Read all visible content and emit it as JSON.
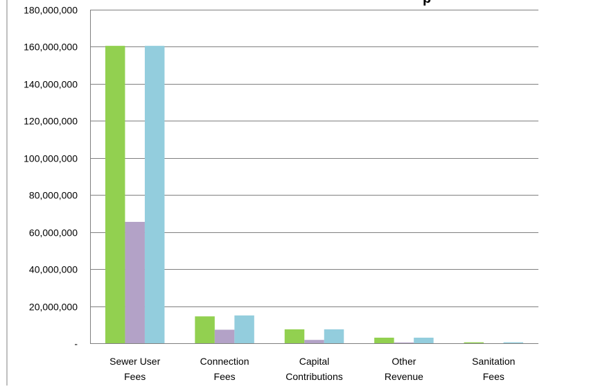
{
  "chart_data": {
    "type": "bar",
    "title_fragment": "p",
    "categories": [
      [
        "Sewer User",
        "Fees"
      ],
      [
        "Connection",
        "Fees"
      ],
      [
        "Capital",
        "Contributions"
      ],
      [
        "Other",
        "Revenue"
      ],
      [
        "Sanitation",
        "Fees"
      ]
    ],
    "series": [
      {
        "values": [
          160500000,
          14500000,
          7500000,
          3000000,
          500000
        ],
        "color": "#92d050"
      },
      {
        "values": [
          65500000,
          7300000,
          1800000,
          400000,
          0
        ],
        "color": "#b3a2c7"
      },
      {
        "values": [
          160500000,
          15000000,
          7500000,
          3000000,
          500000
        ],
        "color": "#93cddd"
      }
    ],
    "ylim": [
      0,
      180000000
    ],
    "yticks": [
      0,
      20000000,
      40000000,
      60000000,
      80000000,
      100000000,
      120000000,
      140000000,
      160000000,
      180000000
    ],
    "ytick_labels": [
      "-",
      "20,000,000",
      "40,000,000",
      "60,000,000",
      "80,000,000",
      "100,000,000",
      "120,000,000",
      "140,000,000",
      "160,000,000",
      "180,000,000"
    ],
    "grid": true,
    "gridline_color": "#7f7f7f",
    "legend": "none"
  }
}
